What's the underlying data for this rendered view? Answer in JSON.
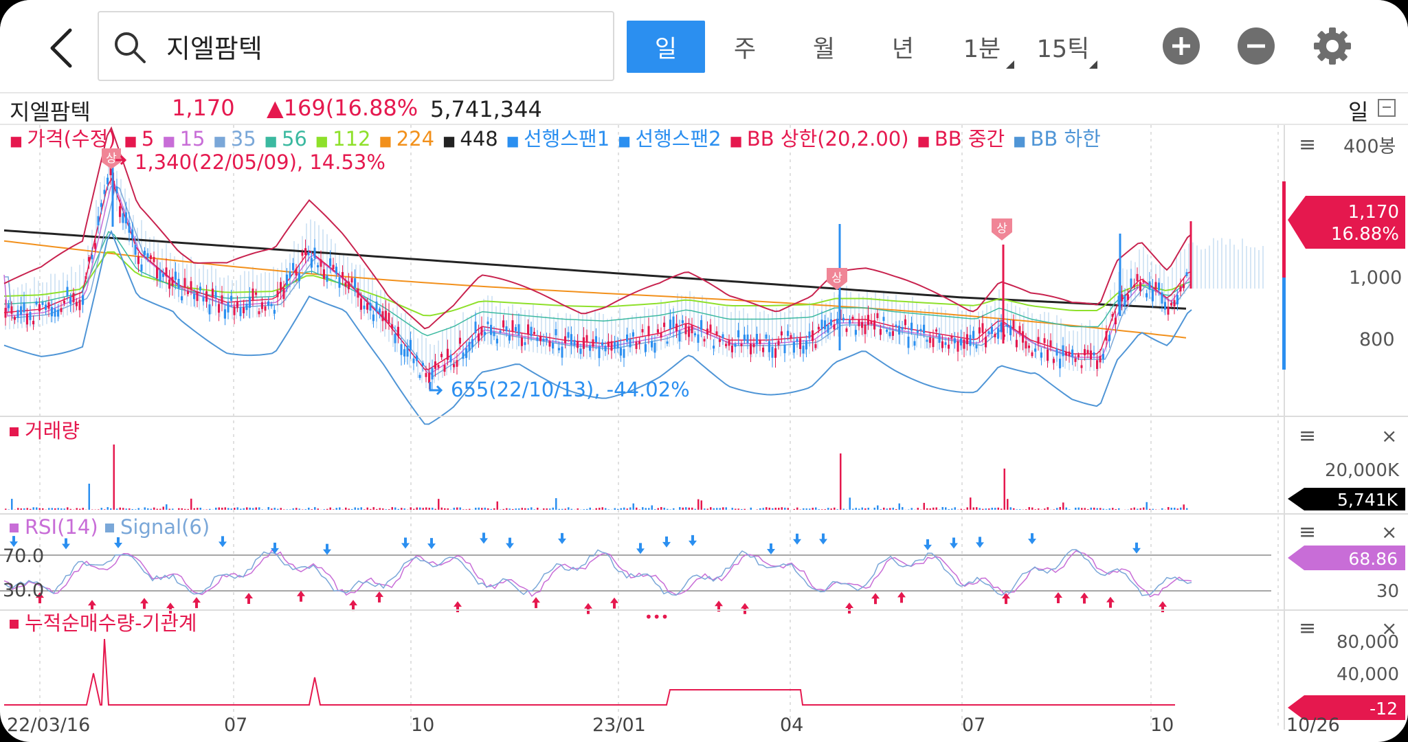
{
  "search": {
    "value": "지엘팜텍"
  },
  "periods": [
    {
      "label": "일",
      "active": true
    },
    {
      "label": "주",
      "active": false
    },
    {
      "label": "월",
      "active": false
    },
    {
      "label": "년",
      "active": false
    },
    {
      "label": "1분",
      "active": false,
      "corner": true
    },
    {
      "label": "15틱",
      "active": false,
      "corner": true
    }
  ],
  "stock": {
    "name": "지엘팜텍",
    "price": "1,170",
    "change": "▲169(16.88%",
    "volume": "5,741,344",
    "period_label": "일"
  },
  "price_panel": {
    "legend": [
      {
        "label": "가격(수정)",
        "color": "#e5184e"
      },
      {
        "label": "5",
        "color": "#e5184e"
      },
      {
        "label": "15",
        "color": "#c86dd7"
      },
      {
        "label": "35",
        "color": "#7aa7d8"
      },
      {
        "label": "56",
        "color": "#3bb9a0"
      },
      {
        "label": "112",
        "color": "#8ee02a"
      },
      {
        "label": "224",
        "color": "#f2901b"
      },
      {
        "label": "448",
        "color": "#222222"
      },
      {
        "label": "선행스팬1",
        "color": "#2b8ff0"
      },
      {
        "label": "선행스팬2",
        "color": "#2b8ff0"
      },
      {
        "label": "BB 상한(20,2.00)",
        "color": "#e5184e"
      },
      {
        "label": "BB 중간",
        "color": "#e5184e"
      },
      {
        "label": "BB 하한",
        "color": "#4f95d6"
      }
    ],
    "high_annotation": "1,340(22/05/09), 14.53%",
    "low_annotation": "655(22/10/13), -44.02%",
    "limit_up_badge": "상",
    "axis_label": "400봉",
    "y_ticks": [
      "1,000",
      "800"
    ],
    "current_price": "1,170",
    "current_change": "16.88%"
  },
  "volume_panel": {
    "title": "거래량",
    "y_tick": "20,000K",
    "current": "5,741K"
  },
  "rsi_panel": {
    "title": "RSI(14)",
    "signal": "Signal(6)",
    "levels": [
      "70.0",
      "30.0"
    ],
    "right_tick": "30",
    "current": "68.86"
  },
  "inst_panel": {
    "title": "누적순매수량-기관계",
    "y_ticks": [
      "80,000",
      "40,000"
    ],
    "current": "-12",
    "more": "•••"
  },
  "x_axis": [
    "22/03/16",
    "07",
    "10",
    "23/01",
    "04",
    "07",
    "10",
    "10/26"
  ],
  "colors": {
    "up": "#e5184e",
    "down": "#2b8ff0",
    "accent": "#2b8ff0",
    "rsi": "#c86dd7"
  }
}
